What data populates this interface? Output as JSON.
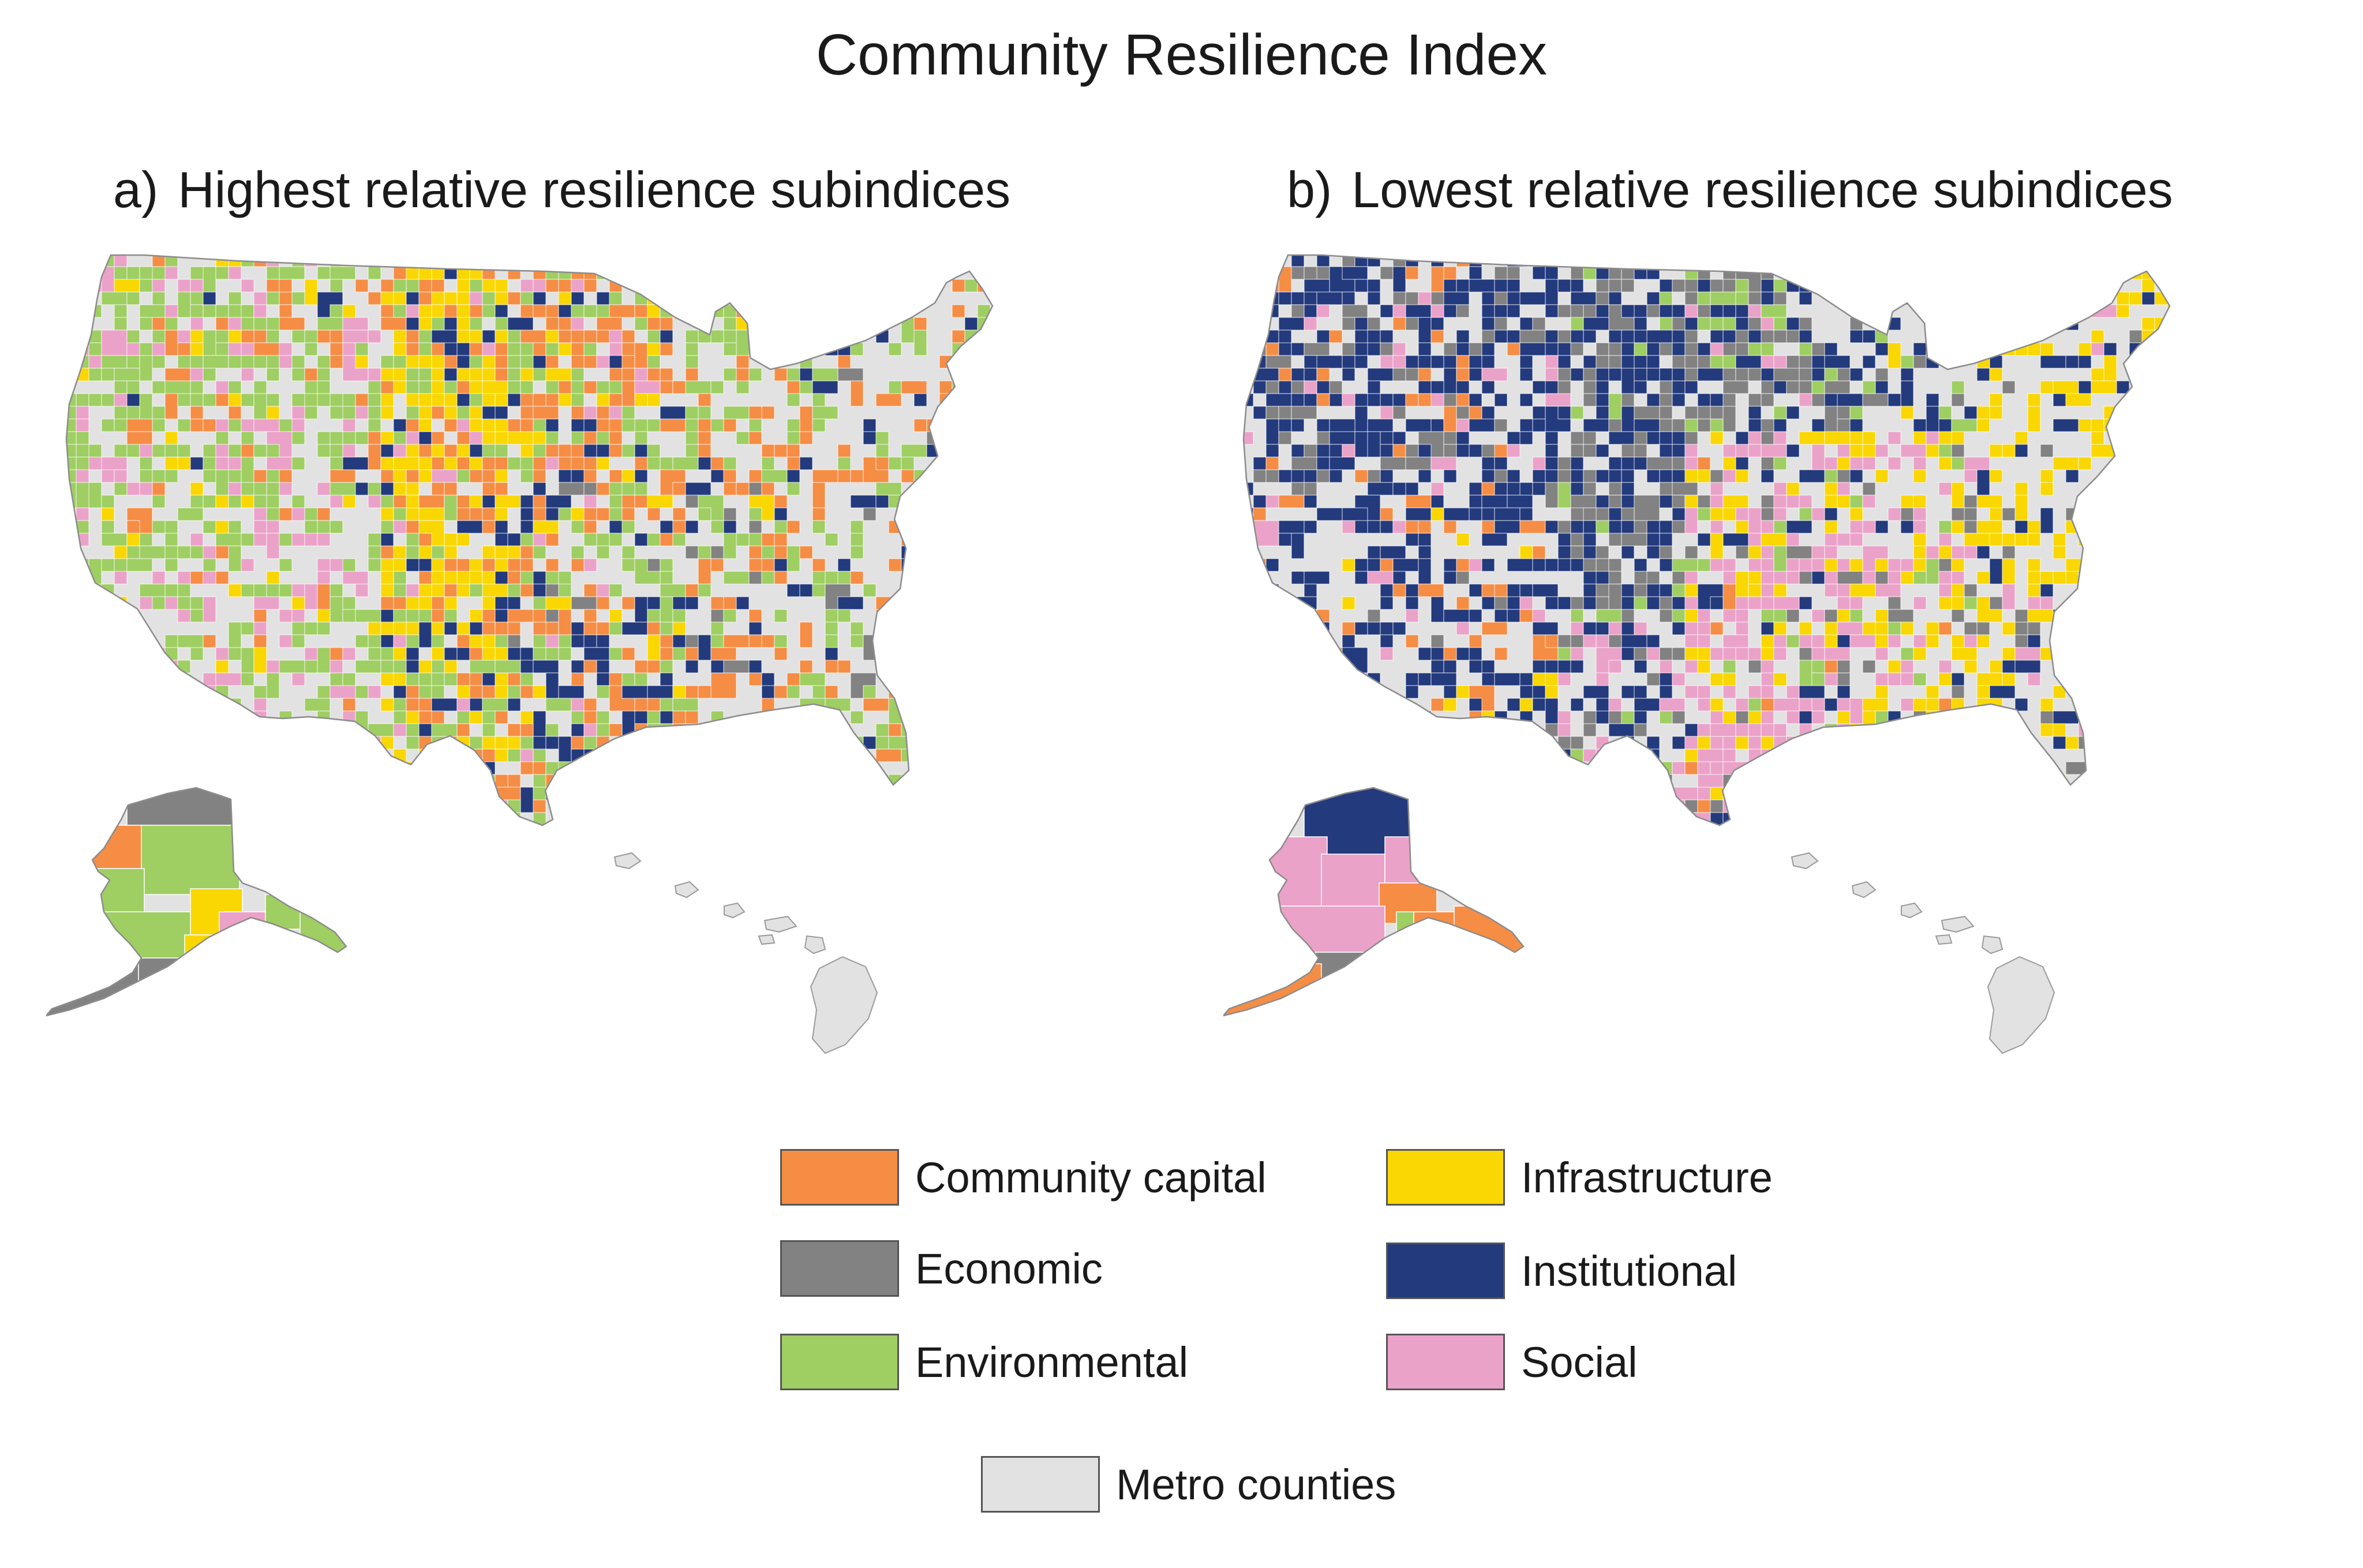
{
  "title": "Community Resilience Index",
  "panels": [
    {
      "letter": "a)",
      "title": "Highest relative resilience subindices"
    },
    {
      "letter": "b)",
      "title": "Lowest relative resilience subindices"
    }
  ],
  "legend": {
    "items": [
      {
        "label": "Community capital",
        "color": "#F68D45"
      },
      {
        "label": "Economic",
        "color": "#828282"
      },
      {
        "label": "Environmental",
        "color": "#9FCE63"
      },
      {
        "label": "Infrastructure",
        "color": "#FAD700"
      },
      {
        "label": "Institutional",
        "color": "#233A7D"
      },
      {
        "label": "Social",
        "color": "#EBA2C9"
      },
      {
        "label": "Metro counties",
        "color": "#E2E2E2"
      }
    ]
  }
}
